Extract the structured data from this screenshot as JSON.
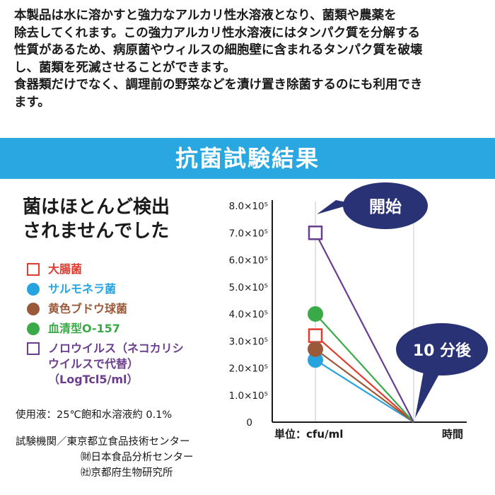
{
  "intro": {
    "lines": [
      "本製品は水に溶かすと強力なアルカリ性水溶液となり、菌類や農薬を",
      "除去してくれます。この強力アルカリ性水溶液にはタンパク質を分解する",
      "性質があるため、病原菌やウィルスの細胞壁に含まれるタンパク質を破壊",
      "し、菌類を死滅させることができます。",
      "食器類だけでなく、調理前の野菜などを漬け置き除菌するのにも利用でき",
      "ます。"
    ]
  },
  "banner": {
    "title": "抗菌試験結果"
  },
  "headline": {
    "line1": "菌はほとんど検出",
    "line2": "されませんでした"
  },
  "legend": [
    {
      "label": "大腸菌",
      "color": "#e23a2f",
      "marker": "square"
    },
    {
      "label": "サルモネラ菌",
      "color": "#27a4e0",
      "marker": "circle"
    },
    {
      "label": "黄色ブドウ球菌",
      "color": "#9a5a3a",
      "marker": "circle"
    },
    {
      "label": "血清型O-157",
      "color": "#3aaa48",
      "marker": "circle"
    },
    {
      "label_lines": [
        "ノロウイルス（ネコカリシ",
        "ウイルスで代替）",
        "（LogTcl5/ml）"
      ],
      "color": "#6a3d8f",
      "marker": "square"
    }
  ],
  "notes": {
    "solution": "使用液：25℃飽和水溶液約 0.1%",
    "org_label": "試験機関／東京都立食品技術センター",
    "org2": "㈶日本食品分析センター",
    "org3": "㈳京都府生物研究所"
  },
  "chart_data": {
    "type": "line",
    "y_tick_labels": [
      "0",
      "1.0×10⁵",
      "2.0×10⁵",
      "3.0×10⁵",
      "4.0×10⁵",
      "5.0×10⁵",
      "6.0×10⁵",
      "7.0×10⁵",
      "8.0×10⁵"
    ],
    "y_ticks": [
      0,
      100000,
      200000,
      300000,
      400000,
      500000,
      600000,
      700000,
      800000
    ],
    "ylim": [
      0,
      800000
    ],
    "x_points": [
      "開始",
      "10 分後"
    ],
    "xlabel": "時間",
    "unit_label": "単位：cfu/ml",
    "start_label": "開始",
    "end_label": "10 分後",
    "grid_lines_at": [
      0,
      1
    ],
    "series": [
      {
        "name": "大腸菌",
        "values": [
          320000,
          0
        ],
        "color": "#e23a2f",
        "marker": "square"
      },
      {
        "name": "サルモネラ菌",
        "values": [
          230000,
          0
        ],
        "color": "#27a4e0",
        "marker": "circle"
      },
      {
        "name": "黄色ブドウ球菌",
        "values": [
          270000,
          0
        ],
        "color": "#9a5a3a",
        "marker": "circle"
      },
      {
        "name": "血清型O-157",
        "values": [
          400000,
          0
        ],
        "color": "#3aaa48",
        "marker": "circle"
      },
      {
        "name": "ノロウイルス（ネコカリシウイルスで代替）",
        "values": [
          700000,
          0
        ],
        "color": "#6a3d8f",
        "marker": "square"
      }
    ],
    "callout_color": "#2a3276"
  }
}
